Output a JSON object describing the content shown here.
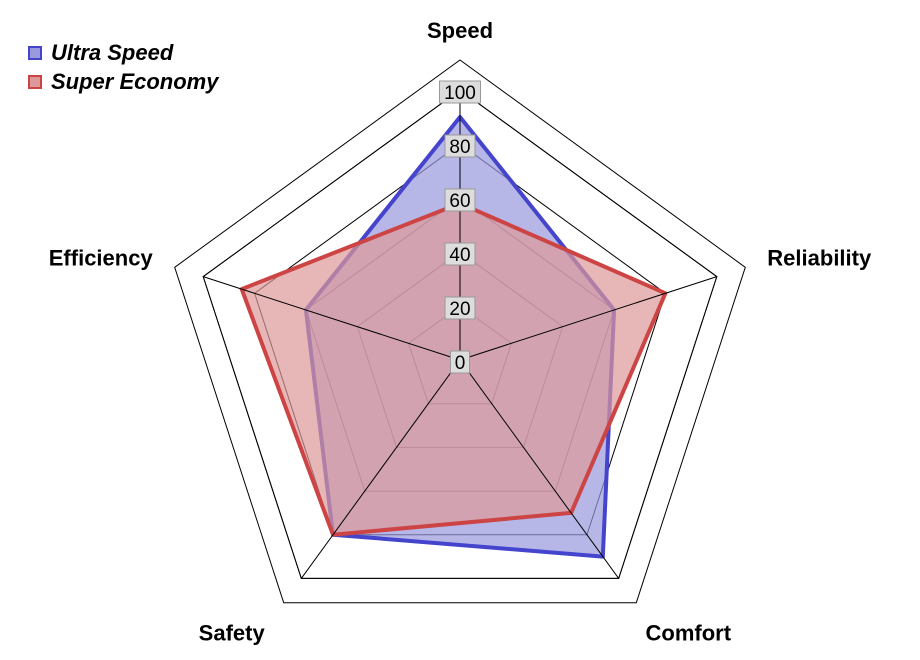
{
  "chart_data": {
    "type": "radar",
    "axes": [
      "Speed",
      "Reliability",
      "Comfort",
      "Safety",
      "Efficiency"
    ],
    "ticks": [
      "0",
      "20",
      "40",
      "60",
      "80",
      "100"
    ],
    "range": [
      0,
      100
    ],
    "grid": true,
    "legend": "top-left",
    "series": [
      {
        "name": "Ultra Speed",
        "values": [
          90,
          60,
          90,
          80,
          60
        ],
        "fill": "#9999dd",
        "stroke": "#4444cc"
      },
      {
        "name": "Super Economy",
        "values": [
          58,
          80,
          70,
          80,
          85
        ],
        "fill": "#dd9999",
        "stroke": "#cc4444"
      }
    ]
  }
}
